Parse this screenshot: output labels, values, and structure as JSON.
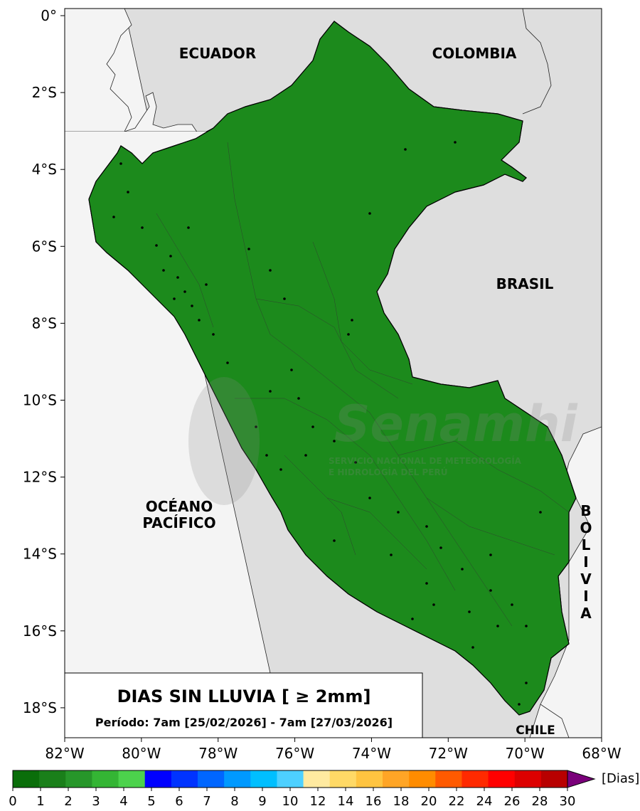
{
  "map": {
    "countries": {
      "ecuador": "ECUADOR",
      "colombia": "COLOMBIA",
      "brasil": "BRASIL",
      "bolivia": [
        "B",
        "O",
        "L",
        "I",
        "V",
        "I",
        "A"
      ],
      "chile": "CHILE"
    },
    "ocean": [
      "OCÉANO",
      "PACÍFICO"
    ],
    "watermark": {
      "name": "Senamhi",
      "line1": "SERVICIO NACIONAL DE METEOROLOGÍA",
      "line2": "E HIDROLOGÍA DEL PERÚ"
    },
    "lat_ticks": [
      "0°",
      "2°S",
      "4°S",
      "6°S",
      "8°S",
      "10°S",
      "12°S",
      "14°S",
      "16°S",
      "18°S"
    ],
    "lon_ticks": [
      "82°W",
      "80°W",
      "78°W",
      "76°W",
      "74°W",
      "72°W",
      "70°W",
      "68°W"
    ]
  },
  "title_box": {
    "title": "DIAS SIN LLUVIA [ ≥ 2mm]",
    "period": "Período: 7am [25/02/2026] - 7am [27/03/2026]"
  },
  "colorbar": {
    "unit": "[Dias]",
    "ticks": [
      "0",
      "1",
      "2",
      "3",
      "4",
      "5",
      "6",
      "7",
      "8",
      "9",
      "10",
      "12",
      "14",
      "16",
      "18",
      "20",
      "22",
      "24",
      "26",
      "28",
      "30"
    ],
    "colors": [
      "#0a6e0a",
      "#1a7f1a",
      "#27962a",
      "#34b534",
      "#4cd24c",
      "#0000ff",
      "#0033ff",
      "#0066ff",
      "#0099ff",
      "#00bfff",
      "#4dd0ff",
      "#ffeaa0",
      "#ffd966",
      "#ffc440",
      "#ffa526",
      "#ff8c00",
      "#ff5a00",
      "#ff2a00",
      "#ff0000",
      "#dd0000",
      "#b80000"
    ],
    "extend_color": "#7a007a"
  }
}
